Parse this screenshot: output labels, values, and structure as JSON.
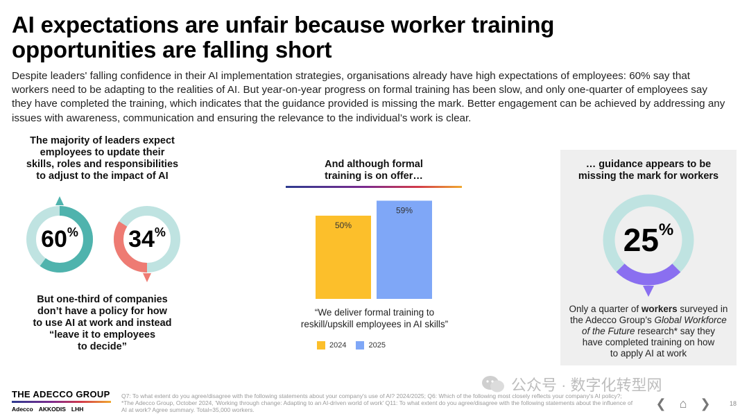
{
  "title": {
    "line1": "AI expectations are unfair because worker training",
    "line2": "opportunities are falling short"
  },
  "intro": "Despite leaders' falling confidence in their AI implementation strategies, organisations already have high expectations of employees: 60% say that workers need to be adapting to the realities of AI. But year-on-year progress on formal training has been slow, and only one-quarter of employees say they have completed the training, which indicates that the guidance provided is missing the mark. Better engagement can be achieved by addressing any issues with awareness, communication and ensuring the relevance to the individual’s work is clear.",
  "left": {
    "heading": [
      "The majority of leaders expect",
      "employees to update their",
      "skills, roles and responsibilities",
      "to adjust to the impact of AI"
    ],
    "donut1": {
      "value": "60",
      "unit": "%",
      "fraction": 0.6,
      "color": "#4fb3ad",
      "track": "#bfe3e1"
    },
    "donut2": {
      "value": "34",
      "unit": "%",
      "fraction": 0.34,
      "color": "#ee7b73",
      "track": "#bfe3e1"
    },
    "footer": [
      "But one-third of companies",
      "don’t have a policy for how",
      "to use AI at work and instead",
      "“leave it to employees",
      "to decide”"
    ]
  },
  "middle": {
    "heading": [
      "And although formal",
      "training is on offer…"
    ],
    "quote": [
      "“We deliver formal training to",
      "reskill/upskill employees in AI skills”"
    ],
    "legend": [
      {
        "label": "2024",
        "color": "#fcbf2b"
      },
      {
        "label": "2025",
        "color": "#7fa7f7"
      }
    ]
  },
  "chart_data": {
    "type": "bar",
    "categories": [
      "2024",
      "2025"
    ],
    "values": [
      50,
      59
    ],
    "data_labels": [
      "50%",
      "59%"
    ],
    "colors": [
      "#fcbf2b",
      "#7fa7f7"
    ],
    "ylim": [
      0,
      100
    ],
    "grid": false,
    "legend": "bottom-left"
  },
  "right": {
    "heading": [
      "… guidance appears to be",
      "missing the mark for workers"
    ],
    "donut": {
      "value": "25",
      "unit": "%",
      "fraction": 0.25,
      "color": "#8a6ff0",
      "track": "#bfe3e1"
    },
    "text": {
      "part1": "Only a quarter of ",
      "bold": "workers",
      "part2": " surveyed in",
      "line2a": "the Adecco Group’s ",
      "line2b": "Global Workforce",
      "line3a": "of the Future",
      "line3b": " research* say they",
      "line4": "have completed training on how",
      "line5": "to apply AI at work"
    }
  },
  "footer": {
    "logo": "THE ADECCO GROUP",
    "brands": [
      "Adecco",
      "AKKODIS",
      "LHH"
    ],
    "note": "Q7: To what extent do you agree/disagree with the following statements about your company's use of AI? 2024/2025; Q6: Which of the following most closely reflects your company's AI policy?; *The Adecco Group, October 2024, 'Working through change: Adapting to an AI-driven world of work' Q11: To what extent do you agree/disagree with the following statements about the influence of AI at work? Agree summary. Total=35,000 workers.",
    "watermark": "公众号 · 数字化转型网",
    "nav": {
      "prev": "❮",
      "home": "⌂",
      "next": "❯"
    },
    "page": "18"
  }
}
